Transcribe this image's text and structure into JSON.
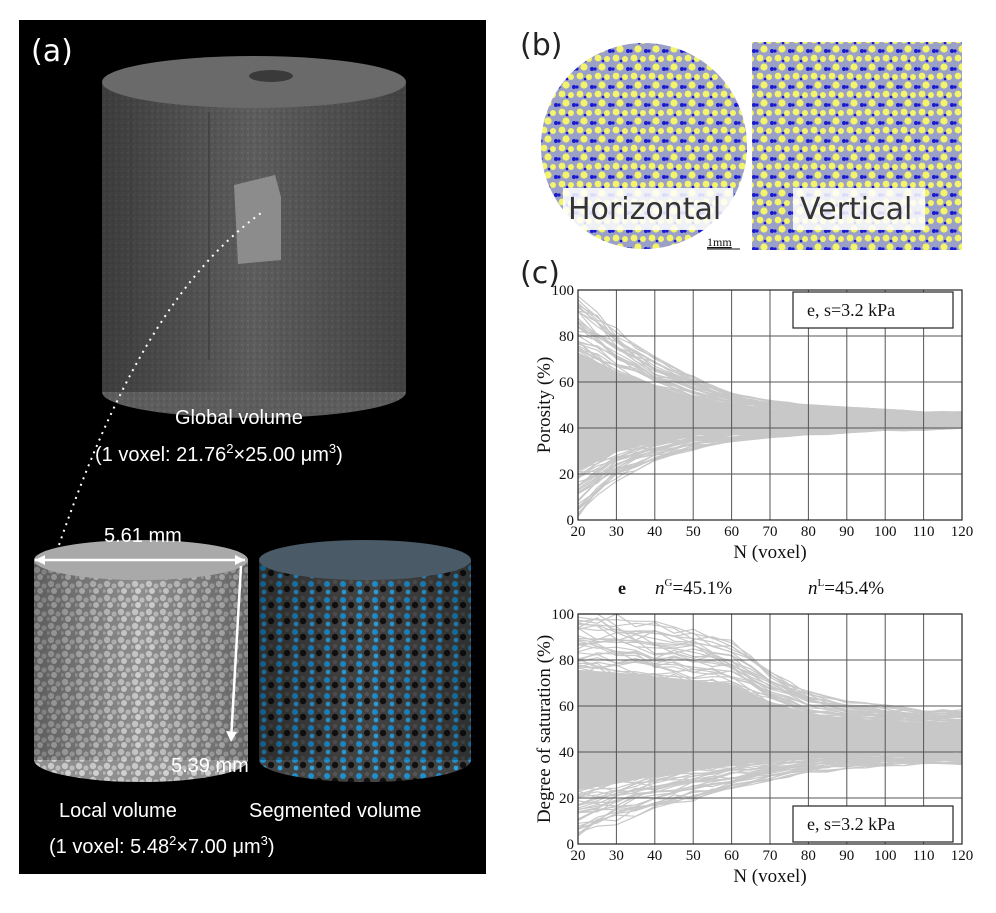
{
  "panel_a": {
    "label": "(a)",
    "global_title": "Global volume",
    "global_voxel": "(1 voxel: 21.76",
    "global_voxel_sup": "2",
    "global_voxel_tail": "×25.00 μm",
    "global_voxel_sup2": "3",
    "global_voxel_close": ")",
    "dim_width": "5.61 mm",
    "dim_height": "5.39 mm",
    "local_title": "Local volume",
    "local_voxel": "(1 voxel: 5.48",
    "local_voxel_sup": "2",
    "local_voxel_tail": "×7.00 μm",
    "local_voxel_sup2": "3",
    "local_voxel_close": ")",
    "segmented_title": "Segmented volume"
  },
  "panel_b": {
    "label": "(b)",
    "horizontal": "Horizontal",
    "vertical": "Vertical",
    "scale": "1mm",
    "colors": {
      "solid": "#f4f46a",
      "water": "#1a1acc",
      "air": "#9aa0c8"
    }
  },
  "panel_c": {
    "label": "(c)",
    "middle_line": {
      "tag": "e",
      "nG_base": "n",
      "nG_sup": "G",
      "nG_val": "=45.1%",
      "nL_base": "n",
      "nL_sup": "L",
      "nL_val": "=45.4%"
    }
  },
  "chart_data": [
    {
      "type": "line",
      "legend": "e, s=3.2 kPa",
      "xlabel": "N (voxel)",
      "ylabel": "Porosity (%)",
      "xlim": [
        20,
        120
      ],
      "ylim": [
        0,
        100
      ],
      "xticks": [
        20,
        30,
        40,
        50,
        60,
        70,
        80,
        90,
        100,
        110,
        120
      ],
      "yticks": [
        0,
        20,
        40,
        60,
        80,
        100
      ],
      "envelope": {
        "x": [
          20,
          30,
          40,
          50,
          60,
          70,
          80,
          90,
          100,
          110,
          120
        ],
        "upper": [
          97,
          82,
          70,
          62,
          55,
          52,
          50,
          49,
          48,
          47,
          47
        ],
        "lower": [
          3,
          18,
          26,
          31,
          34,
          36,
          37,
          38,
          39,
          39,
          40
        ],
        "center": 43.5
      },
      "line_color": "#c8c8c8"
    },
    {
      "type": "line",
      "legend": "e, s=3.2 kPa",
      "xlabel": "N (voxel)",
      "ylabel": "Degree of saturation (%)",
      "xlim": [
        20,
        120
      ],
      "ylim": [
        0,
        100
      ],
      "xticks": [
        20,
        30,
        40,
        50,
        60,
        70,
        80,
        90,
        100,
        110,
        120
      ],
      "yticks": [
        0,
        20,
        40,
        60,
        80,
        100
      ],
      "envelope": {
        "x": [
          20,
          30,
          40,
          50,
          60,
          70,
          80,
          90,
          100,
          110,
          120
        ],
        "upper": [
          100,
          98,
          95,
          92,
          88,
          75,
          66,
          62,
          60,
          58,
          58
        ],
        "lower": [
          5,
          10,
          16,
          20,
          24,
          28,
          31,
          33,
          34,
          35,
          35
        ],
        "center": 46
      },
      "line_color": "#c8c8c8"
    }
  ]
}
